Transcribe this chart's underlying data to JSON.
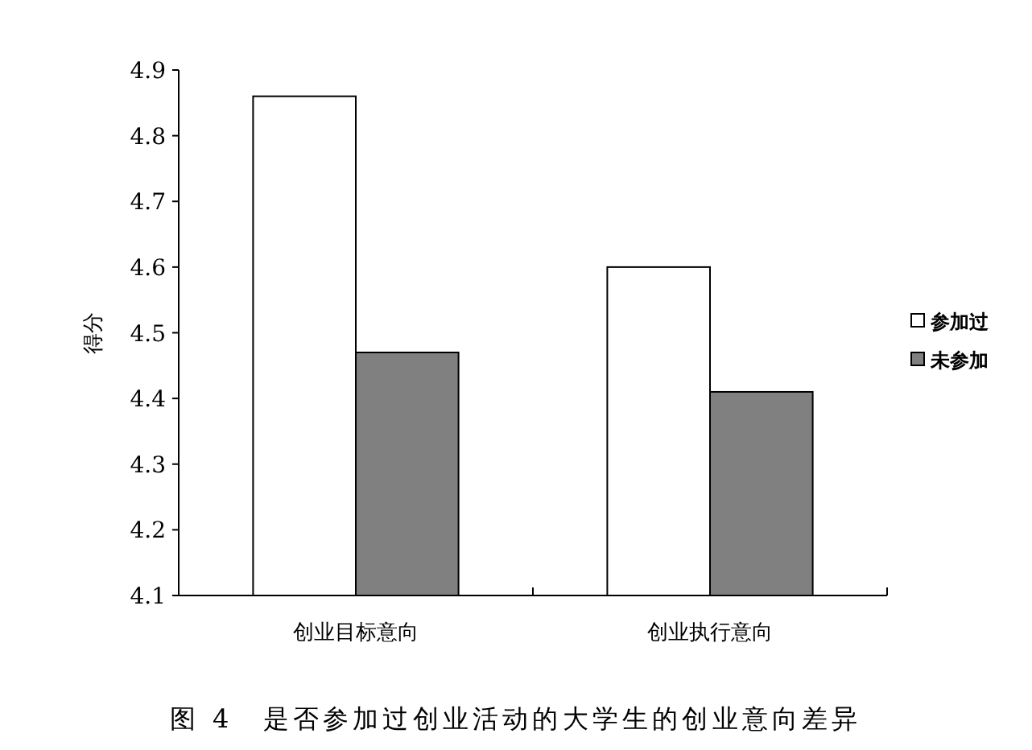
{
  "chart_data": {
    "type": "bar",
    "title": "图 4　是否参加过创业活动的大学生的创业意向差异",
    "ylabel": "得分",
    "categories": [
      "创业目标意向",
      "创业执行意向"
    ],
    "series": [
      {
        "name": "参加过",
        "color": "#ffffff",
        "values": [
          4.86,
          4.6
        ]
      },
      {
        "name": "未参加",
        "color": "#808080",
        "values": [
          4.47,
          4.41
        ]
      }
    ],
    "ylim": [
      4.1,
      4.9
    ],
    "yticks": [
      4.1,
      4.2,
      4.3,
      4.4,
      4.5,
      4.6,
      4.7,
      4.8,
      4.9
    ],
    "legend": "right",
    "grid": false
  }
}
